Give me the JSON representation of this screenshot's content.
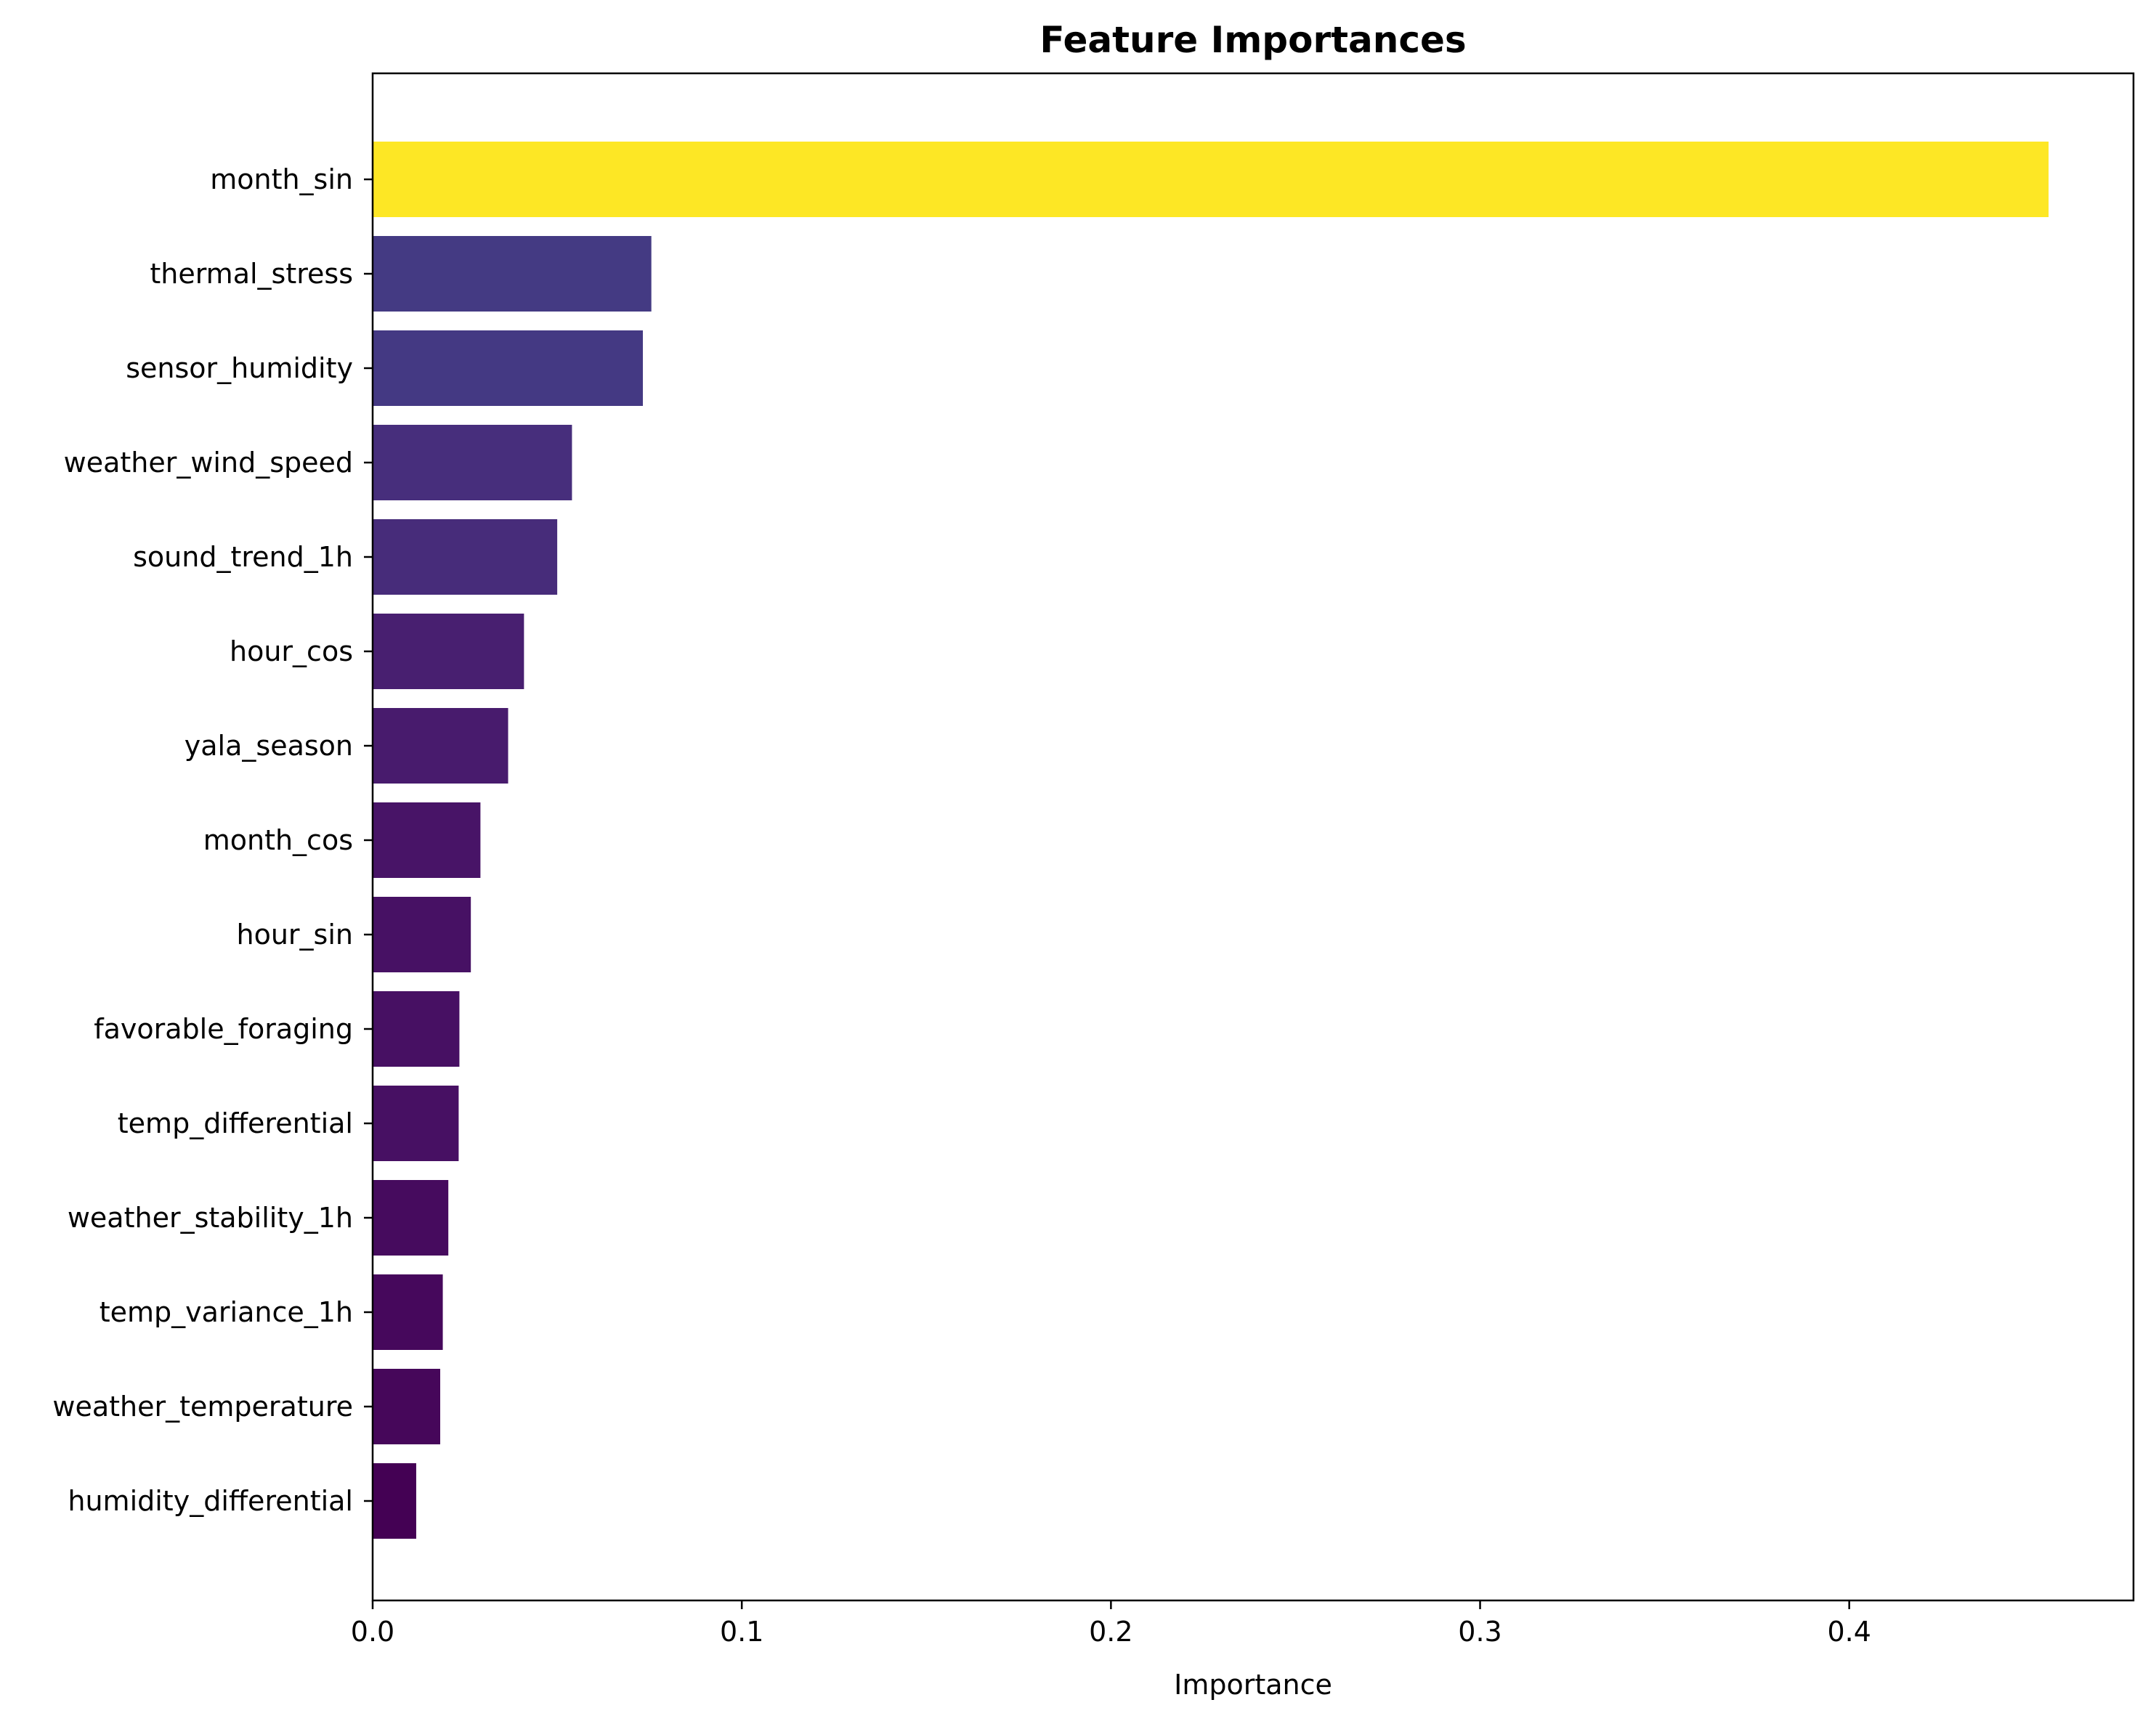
{
  "chart_data": {
    "type": "bar",
    "orientation": "horizontal",
    "title": "Feature Importances",
    "xlabel": "Importance",
    "ylabel": "",
    "xlim": [
      0,
      0.477
    ],
    "xticks": [
      0.0,
      0.1,
      0.2,
      0.3,
      0.4
    ],
    "xtick_labels": [
      "0.0",
      "0.1",
      "0.2",
      "0.3",
      "0.4"
    ],
    "grid": false,
    "legend": "none",
    "colormap": "viridis",
    "categories": [
      "month_sin",
      "thermal_stress",
      "sensor_humidity",
      "weather_wind_speed",
      "sound_trend_1h",
      "hour_cos",
      "yala_season",
      "month_cos",
      "hour_sin",
      "favorable_foraging",
      "temp_differential",
      "weather_stability_1h",
      "temp_variance_1h",
      "weather_temperature",
      "humidity_differential"
    ],
    "values": [
      0.454,
      0.0755,
      0.0732,
      0.054,
      0.05,
      0.041,
      0.0367,
      0.0292,
      0.0266,
      0.0235,
      0.0233,
      0.0205,
      0.019,
      0.0183,
      0.0118
    ],
    "colors": [
      "#fde725",
      "#443a83",
      "#443983",
      "#472e7c",
      "#472c7a",
      "#481f70",
      "#481b6d",
      "#481467",
      "#471164",
      "#471063",
      "#471063",
      "#460b5e",
      "#46085c",
      "#46075a",
      "#440154"
    ]
  }
}
